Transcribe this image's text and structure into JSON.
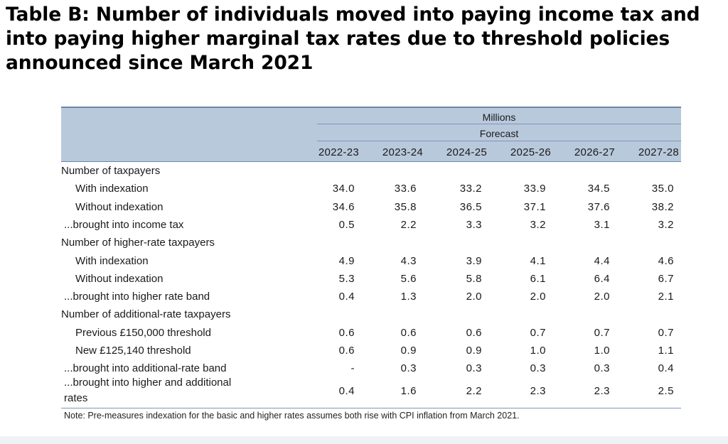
{
  "title": "Table B: Number of individuals moved into paying income tax and into paying higher marginal tax rates due to threshold policies announced since March 2021",
  "title_lines": [
    "Table B: Number of individuals moved into paying income tax and",
    "into paying higher marginal tax rates due to threshold policies",
    "announced since March 2021"
  ],
  "header": {
    "units": "Millions",
    "forecast": "Forecast",
    "years": [
      "2022-23",
      "2023-24",
      "2024-25",
      "2025-26",
      "2026-27",
      "2027-28"
    ]
  },
  "rows": [
    {
      "label": "Number of taxpayers",
      "type": "section",
      "values": [
        "",
        "",
        "",
        "",
        "",
        ""
      ]
    },
    {
      "label": "With indexation",
      "type": "sub",
      "values": [
        "34.0",
        "33.6",
        "33.2",
        "33.9",
        "34.5",
        "35.0"
      ]
    },
    {
      "label": "Without indexation",
      "type": "sub",
      "values": [
        "34.6",
        "35.8",
        "36.5",
        "37.1",
        "37.6",
        "38.2"
      ]
    },
    {
      "label": "...brought into income tax",
      "type": "bring",
      "values": [
        "0.5",
        "2.2",
        "3.3",
        "3.2",
        "3.1",
        "3.2"
      ]
    },
    {
      "label": "Number of higher-rate taxpayers",
      "type": "section",
      "values": [
        "",
        "",
        "",
        "",
        "",
        ""
      ]
    },
    {
      "label": "With indexation",
      "type": "sub",
      "values": [
        "4.9",
        "4.3",
        "3.9",
        "4.1",
        "4.4",
        "4.6"
      ]
    },
    {
      "label": "Without indexation",
      "type": "sub",
      "values": [
        "5.3",
        "5.6",
        "5.8",
        "6.1",
        "6.4",
        "6.7"
      ]
    },
    {
      "label": "...brought into higher rate band",
      "type": "bring",
      "values": [
        "0.4",
        "1.3",
        "2.0",
        "2.0",
        "2.0",
        "2.1"
      ]
    },
    {
      "label": "Number of additional-rate taxpayers",
      "type": "section",
      "values": [
        "",
        "",
        "",
        "",
        "",
        ""
      ]
    },
    {
      "label": "Previous £150,000 threshold",
      "type": "sub",
      "values": [
        "0.6",
        "0.6",
        "0.6",
        "0.7",
        "0.7",
        "0.7"
      ]
    },
    {
      "label": "New £125,140 threshold",
      "type": "sub",
      "values": [
        "0.6",
        "0.9",
        "0.9",
        "1.0",
        "1.0",
        "1.1"
      ]
    },
    {
      "label": "...brought into additional-rate band",
      "type": "bring",
      "values": [
        "-",
        "0.3",
        "0.3",
        "0.3",
        "0.3",
        "0.4"
      ]
    }
  ],
  "last_row": {
    "label_line1": "...brought into higher and additional",
    "label_line2": "rates",
    "values": [
      "0.4",
      "1.6",
      "2.2",
      "2.3",
      "2.3",
      "2.5"
    ]
  },
  "note": "Note: Pre-measures indexation for the basic and higher rates assumes both rise with CPI inflation from March 2021."
}
